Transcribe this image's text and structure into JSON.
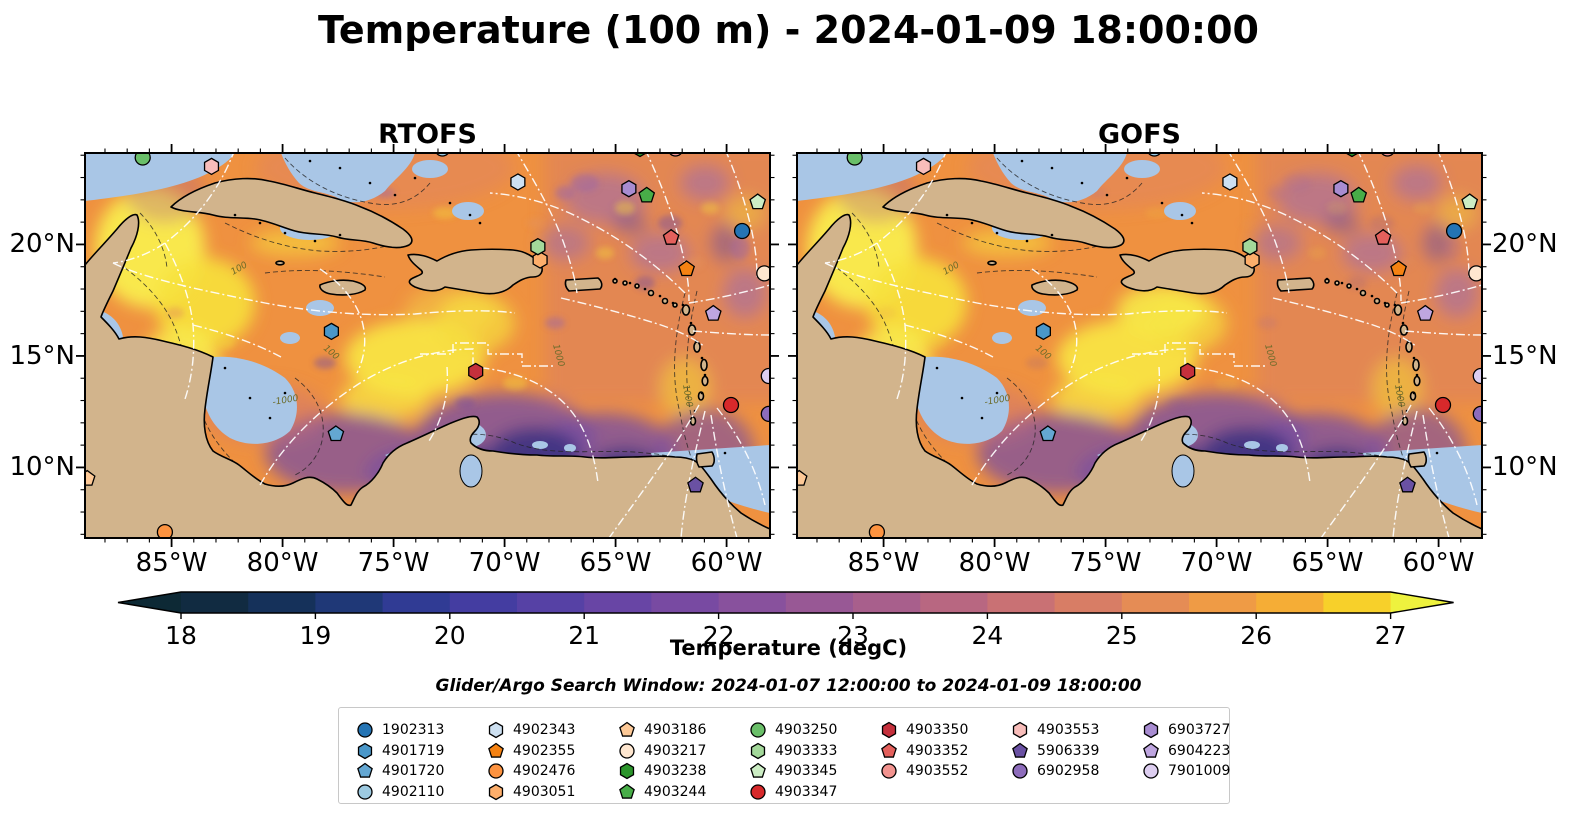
{
  "figure_title": "Temperature (100 m) - 2024-01-09 18:00:00",
  "panels": [
    {
      "title": "RTOFS"
    },
    {
      "title": "GOFS"
    }
  ],
  "axes": {
    "x_tick_labels": [
      "85°W",
      "80°W",
      "75°W",
      "70°W",
      "65°W",
      "60°W"
    ],
    "y_tick_labels": [
      "20°N",
      "15°N",
      "10°N"
    ]
  },
  "colorbar": {
    "label": "Temperature (degC)",
    "tick_labels": [
      "18",
      "19",
      "20",
      "21",
      "22",
      "23",
      "24",
      "25",
      "26",
      "27"
    ],
    "arrow_left_color": "#0d2935",
    "arrow_right_color": "#eef23e",
    "segment_colors": [
      "#112b41",
      "#15315a",
      "#1f3877",
      "#303b94",
      "#443da1",
      "#5641a5",
      "#6845a5",
      "#784aa2",
      "#88519d",
      "#985895",
      "#a85f8c",
      "#b86781",
      "#c97174",
      "#d87d65",
      "#e58c55",
      "#ef9b45",
      "#f5ad36",
      "#f7d02a"
    ]
  },
  "search_window_note": "Glider/Argo Search Window: 2024-01-07 12:00:00 to 2024-01-09 18:00:00",
  "map_colors": {
    "land": "#d2b48c",
    "shallow_mask": "#a9c6e6",
    "ocean_base": "#ef9140",
    "pacific_deep": "#0d2d3a",
    "coastline": "#000000",
    "eez_line": "#ffffff",
    "contour_line": "#222222",
    "contour_label": "#6b6b2a",
    "river": "#a9c6e6"
  },
  "contour_labels": [
    {
      "text": "-1000"
    },
    {
      "text": "100"
    },
    {
      "text": "1000"
    },
    {
      "text": "1000"
    },
    {
      "text": "100"
    }
  ],
  "legend": {
    "columns": [
      4,
      4,
      4,
      4,
      3,
      3,
      3
    ]
  },
  "chart_data": {
    "type": "heatmap",
    "title": "Temperature (100 m) - 2024-01-09 18:00:00",
    "panels": [
      "RTOFS",
      "GOFS"
    ],
    "units": "degC",
    "colorbar_ticks": [
      18,
      19,
      20,
      21,
      22,
      23,
      24,
      25,
      26,
      27
    ],
    "colorbar_extended_both_ends": true,
    "lon_range_deg_w": [
      88.9,
      58.1
    ],
    "lat_range_deg_n": [
      7.0,
      24.1
    ],
    "legend_position": "bottom",
    "floats": [
      {
        "id": "1902313",
        "shape": "circle",
        "color": "#2474b4",
        "lon_w": 59.3,
        "lat_n": 20.6
      },
      {
        "id": "4901719",
        "shape": "hexagon",
        "color": "#4a97c9",
        "lon_w": 77.8,
        "lat_n": 16.1
      },
      {
        "id": "4901720",
        "shape": "pentagon",
        "color": "#64a7d2",
        "lon_w": 77.6,
        "lat_n": 11.5
      },
      {
        "id": "4902110",
        "shape": "circle",
        "color": "#9dcae1",
        "lon_w": 72.8,
        "lat_n": 24.3
      },
      {
        "id": "4902343",
        "shape": "hexagon",
        "color": "#cde0f1",
        "lon_w": 69.4,
        "lat_n": 22.8
      },
      {
        "id": "4902355",
        "shape": "pentagon",
        "color": "#f58212",
        "lon_w": 61.8,
        "lat_n": 18.9
      },
      {
        "id": "4902476",
        "shape": "circle",
        "color": "#fd9340",
        "lon_w": 85.3,
        "lat_n": 7.1
      },
      {
        "id": "4903051",
        "shape": "hexagon",
        "color": "#fdae6b",
        "lon_w": 68.4,
        "lat_n": 19.3
      },
      {
        "id": "4903186",
        "shape": "pentagon",
        "color": "#fdc997",
        "lon_w": 88.8,
        "lat_n": 9.5
      },
      {
        "id": "4903217",
        "shape": "circle",
        "color": "#fee6cf",
        "lon_w": 58.3,
        "lat_n": 18.7
      },
      {
        "id": "4903238",
        "shape": "hexagon",
        "color": "#2b952b",
        "lon_w": 63.9,
        "lat_n": 24.3
      },
      {
        "id": "4903244",
        "shape": "pentagon",
        "color": "#48ad48",
        "lon_w": 63.6,
        "lat_n": 22.2
      },
      {
        "id": "4903250",
        "shape": "circle",
        "color": "#6abf69",
        "lon_w": 86.3,
        "lat_n": 23.9
      },
      {
        "id": "4903333",
        "shape": "hexagon",
        "color": "#a3d89a",
        "lon_w": 68.5,
        "lat_n": 19.9
      },
      {
        "id": "4903345",
        "shape": "pentagon",
        "color": "#ccedc4",
        "lon_w": 58.6,
        "lat_n": 21.9
      },
      {
        "id": "4903347",
        "shape": "circle",
        "color": "#d7292b",
        "lon_w": 59.8,
        "lat_n": 12.8
      },
      {
        "id": "4903350",
        "shape": "hexagon",
        "color": "#c5303c",
        "lon_w": 71.3,
        "lat_n": 14.3
      },
      {
        "id": "4903352",
        "shape": "pentagon",
        "color": "#e4605c",
        "lon_w": 62.5,
        "lat_n": 20.3
      },
      {
        "id": "4903552",
        "shape": "circle",
        "color": "#f2938f",
        "lon_w": 62.3,
        "lat_n": 24.3
      },
      {
        "id": "4903553",
        "shape": "hexagon",
        "color": "#f8bdba",
        "lon_w": 83.2,
        "lat_n": 23.5
      },
      {
        "id": "5906339",
        "shape": "pentagon",
        "color": "#6a51a3",
        "lon_w": 61.4,
        "lat_n": 9.2
      },
      {
        "id": "6902958",
        "shape": "circle",
        "color": "#8d6cbb",
        "lon_w": 58.1,
        "lat_n": 12.4
      },
      {
        "id": "6903727",
        "shape": "hexagon",
        "color": "#a88cd1",
        "lon_w": 64.4,
        "lat_n": 22.5
      },
      {
        "id": "6904223",
        "shape": "pentagon",
        "color": "#bfa6e0",
        "lon_w": 60.6,
        "lat_n": 16.9
      },
      {
        "id": "7901009",
        "shape": "circle",
        "color": "#ddcef0",
        "lon_w": 58.1,
        "lat_n": 14.1
      }
    ]
  }
}
